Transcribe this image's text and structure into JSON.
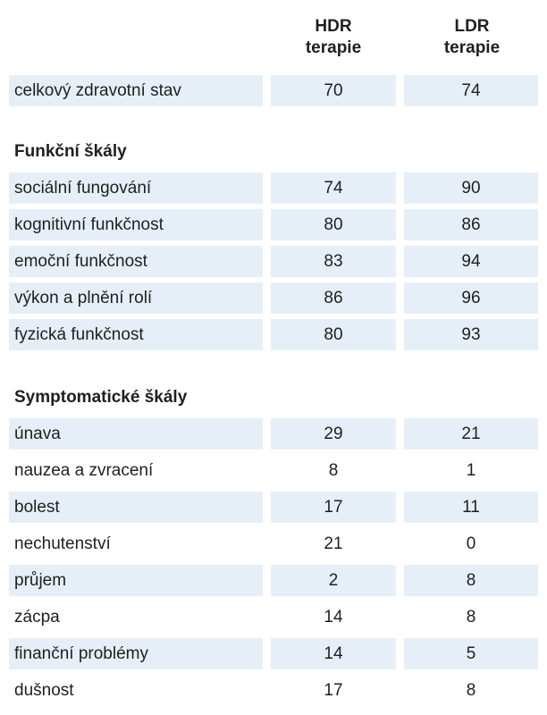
{
  "headers": {
    "hdr": [
      "HDR",
      "terapie"
    ],
    "ldr": [
      "LDR",
      "terapie"
    ]
  },
  "overall": {
    "label": "celkový zdravotní stav",
    "hdr": "70",
    "ldr": "74"
  },
  "functional": {
    "title": "Funkční škály",
    "rows": [
      {
        "label": "sociální fungování",
        "hdr": "74",
        "ldr": "90"
      },
      {
        "label": "kognitivní funkčnost",
        "hdr": "80",
        "ldr": "86"
      },
      {
        "label": "emoční funkčnost",
        "hdr": "83",
        "ldr": "94"
      },
      {
        "label": "výkon a plnění rolí",
        "hdr": "86",
        "ldr": "96"
      },
      {
        "label": "fyzická funkčnost",
        "hdr": "80",
        "ldr": "93"
      }
    ]
  },
  "symptomatic": {
    "title": "Symptomatické škály",
    "rows": [
      {
        "label": "únava",
        "hdr": "29",
        "ldr": "21"
      },
      {
        "label": "nauzea a zvracení",
        "hdr": "8",
        "ldr": "1"
      },
      {
        "label": "bolest",
        "hdr": "17",
        "ldr": "11"
      },
      {
        "label": "nechutenství",
        "hdr": "21",
        "ldr": "0"
      },
      {
        "label": "průjem",
        "hdr": "2",
        "ldr": "8"
      },
      {
        "label": "zácpa",
        "hdr": "14",
        "ldr": "8"
      },
      {
        "label": "finanční problémy",
        "hdr": "14",
        "ldr": "5"
      },
      {
        "label": "dušnost",
        "hdr": "17",
        "ldr": "8"
      }
    ]
  },
  "colors": {
    "row_shade": "#e6eff7",
    "text": "#1f1f1f"
  }
}
